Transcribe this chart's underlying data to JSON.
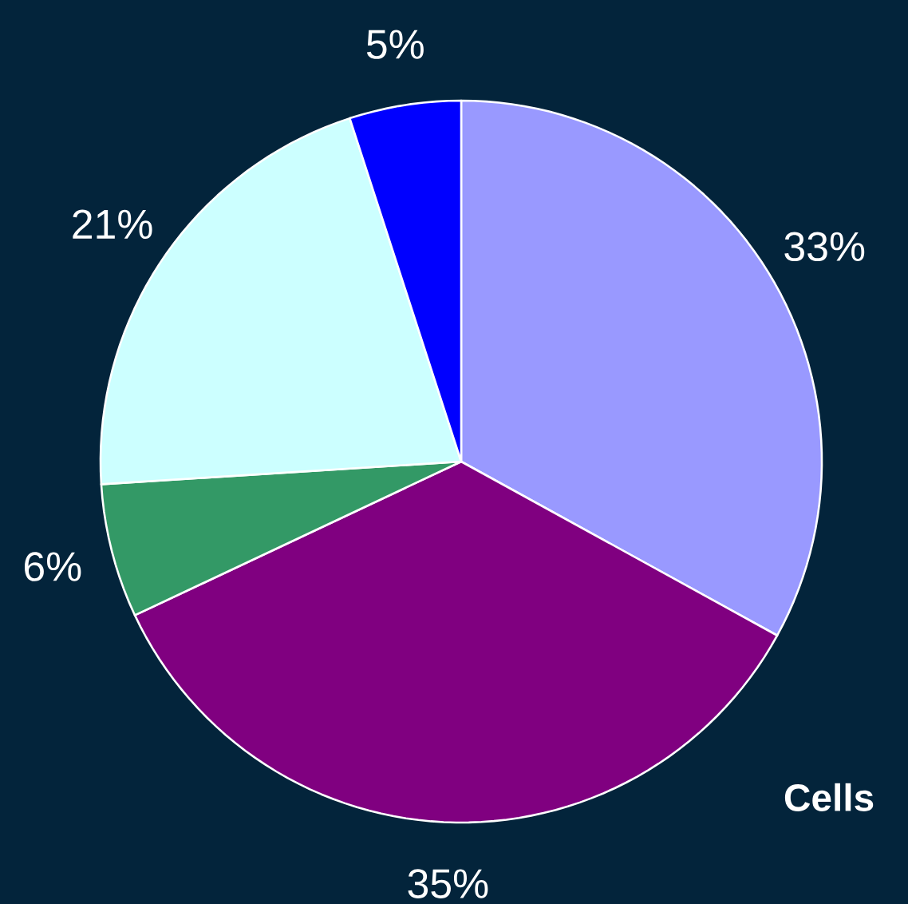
{
  "chart_data": {
    "type": "pie",
    "categories": [
      null,
      null,
      null,
      null,
      null
    ],
    "values": [
      33,
      35,
      6,
      21,
      5
    ],
    "value_labels": [
      "33%",
      "35%",
      "6%",
      "21%",
      "5%"
    ],
    "colors": [
      "#9999ff",
      "#800080",
      "#339966",
      "#ccffff",
      "#0000ff"
    ],
    "annotations": [
      "Cells"
    ]
  }
}
